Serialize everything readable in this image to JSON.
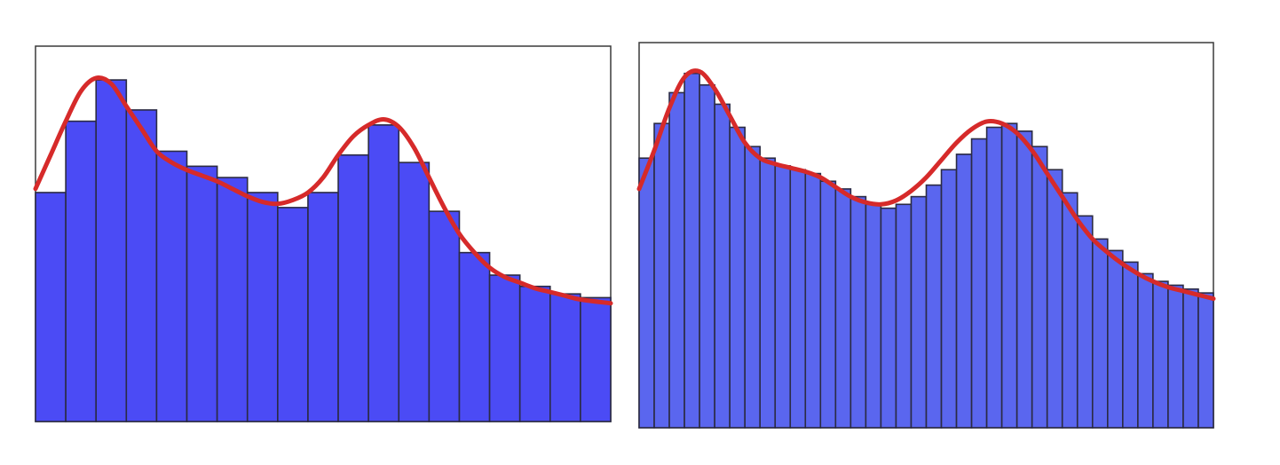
{
  "chart_data": [
    {
      "type": "bar",
      "bar_color": "#4b4bf5",
      "curve_color": "#d62a2a",
      "xlim": [
        0,
        19
      ],
      "ylim": [
        0,
        100
      ],
      "x_centers": [
        0.5,
        1.5,
        2.5,
        3.5,
        4.5,
        5.5,
        6.5,
        7.5,
        8.5,
        9.5,
        10.5,
        11.5,
        12.5,
        13.5,
        14.5,
        15.5,
        16.5,
        17.5,
        18.5
      ],
      "values": [
        61,
        80,
        91,
        83,
        72,
        68,
        65,
        61,
        57,
        61,
        71,
        79,
        69,
        56,
        45,
        39,
        36,
        34,
        33
      ],
      "curve": [
        [
          0,
          62
        ],
        [
          0.5,
          71
        ],
        [
          1,
          80
        ],
        [
          1.5,
          88
        ],
        [
          2,
          91.5
        ],
        [
          2.5,
          90
        ],
        [
          3,
          84
        ],
        [
          3.5,
          78
        ],
        [
          4,
          72
        ],
        [
          4.5,
          69
        ],
        [
          5,
          67
        ],
        [
          5.5,
          65.5
        ],
        [
          6,
          64
        ],
        [
          6.5,
          62
        ],
        [
          7,
          60
        ],
        [
          7.5,
          58.5
        ],
        [
          8,
          58
        ],
        [
          8.5,
          59
        ],
        [
          9,
          61
        ],
        [
          9.5,
          65
        ],
        [
          10,
          71
        ],
        [
          10.5,
          76
        ],
        [
          11,
          79
        ],
        [
          11.5,
          80.5
        ],
        [
          12,
          78.5
        ],
        [
          12.5,
          73
        ],
        [
          13,
          65
        ],
        [
          13.5,
          57
        ],
        [
          14,
          50
        ],
        [
          14.5,
          45
        ],
        [
          15,
          41
        ],
        [
          15.5,
          38.5
        ],
        [
          16,
          37
        ],
        [
          16.5,
          35.5
        ],
        [
          17,
          34.5
        ],
        [
          17.5,
          33.5
        ],
        [
          18,
          32.5
        ],
        [
          19,
          31.5
        ]
      ]
    },
    {
      "type": "bar",
      "bar_color": "#5a66ef",
      "curve_color": "#d62a2a",
      "xlim": [
        0,
        38
      ],
      "ylim": [
        0,
        100
      ],
      "x_centers": [
        0.5,
        1.5,
        2.5,
        3.5,
        4.5,
        5.5,
        6.5,
        7.5,
        8.5,
        9.5,
        10.5,
        11.5,
        12.5,
        13.5,
        14.5,
        15.5,
        16.5,
        17.5,
        18.5,
        19.5,
        20.5,
        21.5,
        22.5,
        23.5,
        24.5,
        25.5,
        26.5,
        27.5,
        28.5,
        29.5,
        30.5,
        31.5,
        32.5,
        33.5,
        34.5,
        35.5,
        36.5,
        37.5
      ],
      "values": [
        70,
        79,
        87,
        92,
        89,
        84,
        78,
        73,
        70,
        68,
        67,
        66,
        64,
        62,
        60,
        58,
        57,
        58,
        60,
        63,
        67,
        71,
        75,
        78,
        79,
        77,
        73,
        67,
        61,
        55,
        49,
        46,
        43,
        40,
        38,
        37,
        36,
        35
      ],
      "curve": [
        [
          0,
          62
        ],
        [
          1,
          72
        ],
        [
          2,
          83
        ],
        [
          3,
          91
        ],
        [
          4,
          92.5
        ],
        [
          5,
          88
        ],
        [
          6,
          81
        ],
        [
          7,
          74
        ],
        [
          8,
          70
        ],
        [
          9,
          68.5
        ],
        [
          10,
          67.5
        ],
        [
          11,
          66.5
        ],
        [
          12,
          65
        ],
        [
          13,
          62.5
        ],
        [
          14,
          60
        ],
        [
          15,
          58.5
        ],
        [
          16,
          58
        ],
        [
          17,
          59
        ],
        [
          18,
          61.5
        ],
        [
          19,
          65
        ],
        [
          20,
          69.5
        ],
        [
          21,
          74
        ],
        [
          22,
          77.5
        ],
        [
          23,
          79.5
        ],
        [
          24,
          79
        ],
        [
          25,
          76.5
        ],
        [
          26,
          72
        ],
        [
          27,
          66
        ],
        [
          28,
          60
        ],
        [
          29,
          54
        ],
        [
          30,
          49
        ],
        [
          31,
          45.5
        ],
        [
          32,
          42.5
        ],
        [
          33,
          40
        ],
        [
          34,
          38
        ],
        [
          35,
          36.5
        ],
        [
          36,
          35.5
        ],
        [
          37,
          34.5
        ],
        [
          38,
          33.5
        ]
      ]
    }
  ]
}
